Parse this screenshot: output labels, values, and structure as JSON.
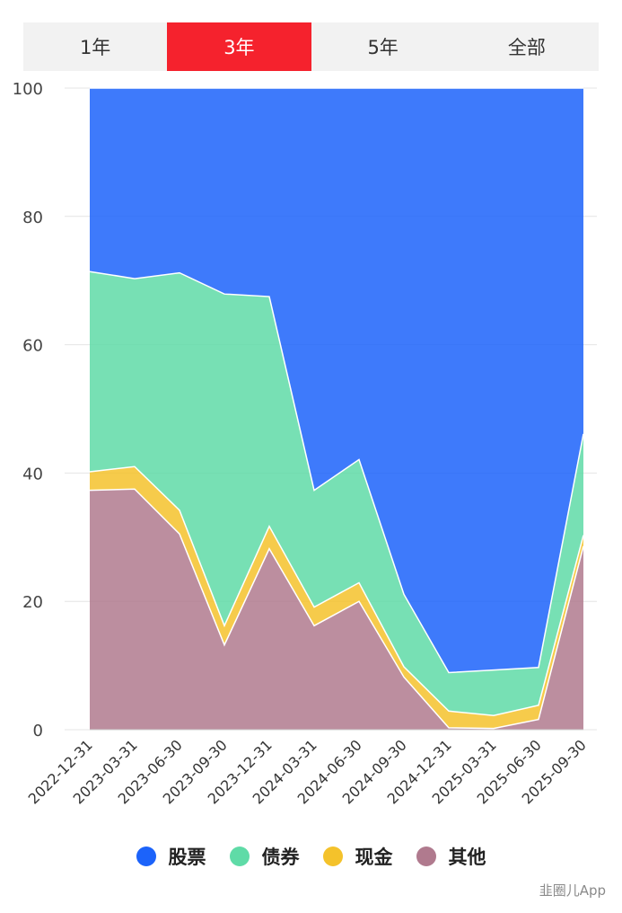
{
  "tabs": [
    {
      "label": "1年",
      "active": false
    },
    {
      "label": "3年",
      "active": true
    },
    {
      "label": "5年",
      "active": false
    },
    {
      "label": "全部",
      "active": false
    }
  ],
  "watermark": "韭圈儿App",
  "chart_data": {
    "type": "area",
    "stacked": true,
    "x": [
      "2022-12-31",
      "2023-03-31",
      "2023-06-30",
      "2023-09-30",
      "2023-12-31",
      "2024-03-31",
      "2024-06-30",
      "2024-09-30",
      "2024-12-31",
      "2025-03-31",
      "2025-06-30",
      "2025-09-30"
    ],
    "ylim": [
      0,
      100
    ],
    "yticks": [
      0,
      20,
      40,
      60,
      80,
      100
    ],
    "grid": true,
    "legend_position": "bottom",
    "series": [
      {
        "name": "其他",
        "color": "#b07a8e",
        "values": [
          37.3,
          37.5,
          30.5,
          13.2,
          28.2,
          16.2,
          20.0,
          8.2,
          0.3,
          0.2,
          1.6,
          28.6
        ]
      },
      {
        "name": "现金",
        "color": "#f4c22b",
        "values": [
          2.9,
          3.5,
          3.7,
          3.0,
          3.5,
          2.9,
          2.9,
          1.6,
          2.6,
          2.0,
          2.2,
          1.7
        ]
      },
      {
        "name": "债券",
        "color": "#5fdba7",
        "values": [
          31.2,
          29.3,
          37.0,
          51.7,
          35.8,
          18.2,
          19.2,
          11.3,
          6.0,
          7.1,
          5.9,
          15.8
        ]
      },
      {
        "name": "股票",
        "color": "#1c63fa",
        "values": [
          28.6,
          29.7,
          28.8,
          32.1,
          32.5,
          62.7,
          57.9,
          78.9,
          91.1,
          90.7,
          90.3,
          53.9
        ]
      }
    ],
    "legend": [
      "股票",
      "债券",
      "现金",
      "其他"
    ]
  }
}
